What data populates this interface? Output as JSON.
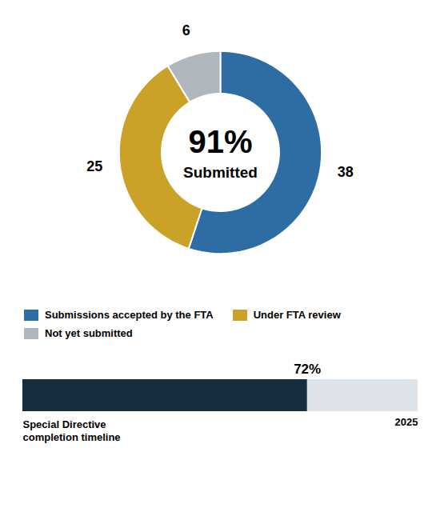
{
  "chart_data": [
    {
      "type": "pie",
      "categories": [
        "Submissions accepted by the FTA",
        "Under FTA review",
        "Not yet submitted"
      ],
      "values": [
        38,
        25,
        6
      ],
      "colors": [
        "#2e6da4",
        "#c9a227",
        "#b0b7bc"
      ],
      "data_labels": true,
      "legend": "bottom",
      "annotations": [
        "91%",
        "Submitted"
      ]
    },
    {
      "type": "bar",
      "orientation": "horizontal",
      "values": [
        72
      ],
      "value_labels": [
        "72%"
      ],
      "data_labels": true,
      "color": "#162d3f",
      "xlim": [
        0,
        100
      ],
      "tick_labels": false,
      "annotations": [
        "Special Directive\ncompletion timeline",
        "2025"
      ]
    }
  ]
}
